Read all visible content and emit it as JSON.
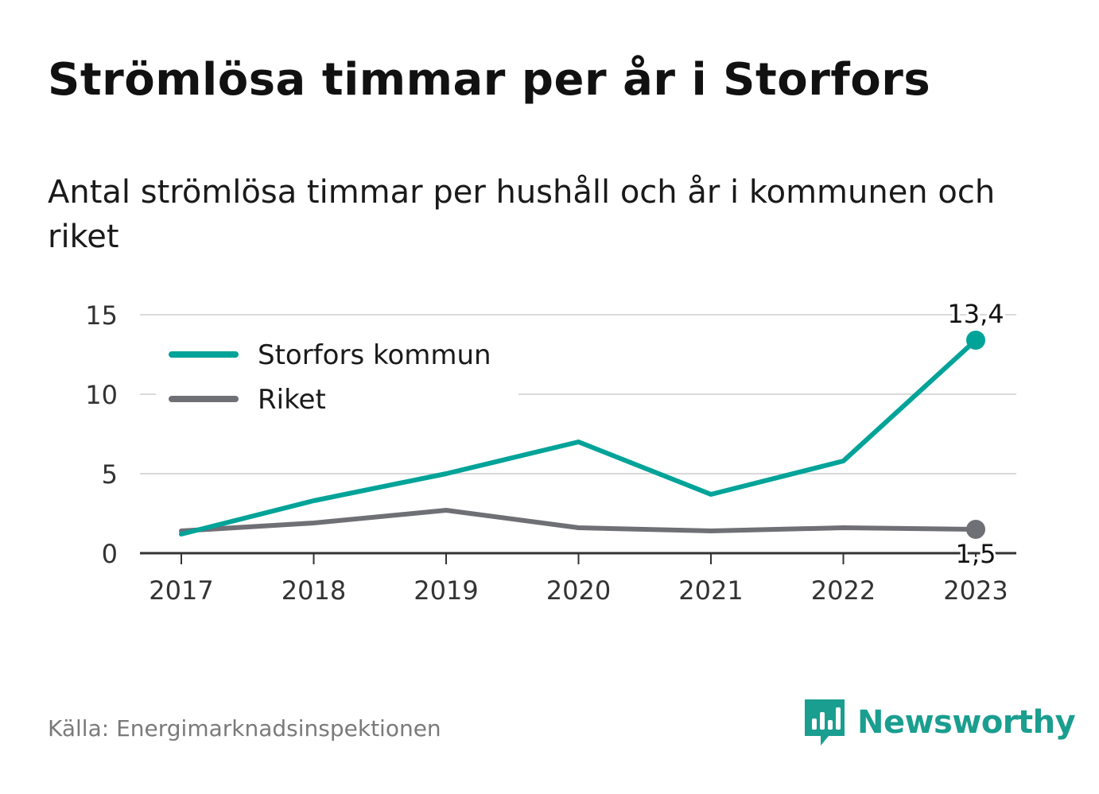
{
  "title": "Strömlösa timmar per år i Storfors",
  "subtitle": "Antal strömlösa timmar per hushåll och år i kommunen och riket",
  "source": "Källa: Energimarknadsinspektionen",
  "brand": {
    "name": "Newsworthy",
    "icon": "newsworthy-logo-icon",
    "color": "#1a9e8f"
  },
  "chart_data": {
    "type": "line",
    "x": [
      "2017",
      "2018",
      "2019",
      "2020",
      "2021",
      "2022",
      "2023"
    ],
    "ylim": [
      0,
      15
    ],
    "yticks": [
      0,
      5,
      10,
      15
    ],
    "grid": true,
    "legend_position": "top-left",
    "series": [
      {
        "name": "Storfors kommun",
        "color": "#00a398",
        "values": [
          1.2,
          3.3,
          5.0,
          7.0,
          3.7,
          5.8,
          13.4
        ],
        "end_label": "13,4"
      },
      {
        "name": "Riket",
        "color": "#6f6f76",
        "values": [
          1.4,
          1.9,
          2.7,
          1.6,
          1.4,
          1.6,
          1.5
        ],
        "end_label": "1,5"
      }
    ]
  }
}
